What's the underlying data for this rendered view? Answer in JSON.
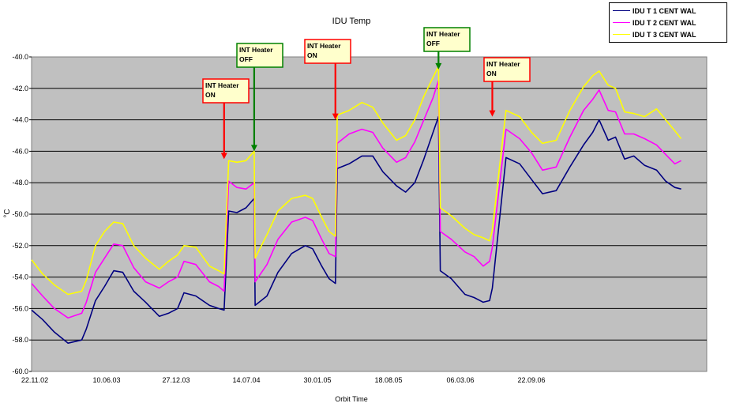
{
  "chart_data": {
    "type": "line",
    "title": "IDU Temp",
    "xlabel": "Orbit Time",
    "ylabel": "°C",
    "ylim": [
      -60,
      -40
    ],
    "yticks": [
      "-40.0",
      "-42.0",
      "-44.0",
      "-46.0",
      "-48.0",
      "-50.0",
      "-52.0",
      "-54.0",
      "-56.0",
      "-58.0",
      "-60.0"
    ],
    "xticks": [
      "22.11.02",
      "10.06.03",
      "27.12.03",
      "14.07.04",
      "30.01.05",
      "18.08.05",
      "06.03.06",
      "22.09.06"
    ],
    "grid": true,
    "plot_background": "#c0c0c0",
    "legend_position": "top-right",
    "series": [
      {
        "name": "IDU T 1 CENT WAL",
        "color": "#000080",
        "values": [
          [
            0,
            -56.1
          ],
          [
            12,
            -56.7
          ],
          [
            25,
            -57.5
          ],
          [
            40,
            -58.2
          ],
          [
            55,
            -58.0
          ],
          [
            60,
            -57.3
          ],
          [
            70,
            -55.5
          ],
          [
            80,
            -54.6
          ],
          [
            90,
            -53.6
          ],
          [
            100,
            -53.7
          ],
          [
            112,
            -54.9
          ],
          [
            125,
            -55.6
          ],
          [
            140,
            -56.5
          ],
          [
            150,
            -56.3
          ],
          [
            160,
            -56.0
          ],
          [
            167,
            -55.0
          ],
          [
            180,
            -55.2
          ],
          [
            195,
            -55.8
          ],
          [
            205,
            -56.0
          ],
          [
            211,
            -56.1
          ],
          [
            216,
            -49.8
          ],
          [
            225,
            -49.9
          ],
          [
            235,
            -49.6
          ],
          [
            244,
            -49.0
          ],
          [
            245,
            -55.8
          ],
          [
            258,
            -55.2
          ],
          [
            270,
            -53.7
          ],
          [
            285,
            -52.5
          ],
          [
            300,
            -52.0
          ],
          [
            308,
            -52.2
          ],
          [
            318,
            -53.3
          ],
          [
            326,
            -54.1
          ],
          [
            333,
            -54.4
          ],
          [
            335,
            -47.1
          ],
          [
            348,
            -46.8
          ],
          [
            362,
            -46.3
          ],
          [
            374,
            -46.3
          ],
          [
            385,
            -47.3
          ],
          [
            400,
            -48.2
          ],
          [
            410,
            -48.6
          ],
          [
            420,
            -48.0
          ],
          [
            430,
            -46.5
          ],
          [
            440,
            -44.8
          ],
          [
            446,
            -43.8
          ],
          [
            448,
            -53.6
          ],
          [
            460,
            -54.1
          ],
          [
            475,
            -55.1
          ],
          [
            485,
            -55.3
          ],
          [
            495,
            -55.6
          ],
          [
            502,
            -55.5
          ],
          [
            505,
            -54.7
          ],
          [
            520,
            -46.4
          ],
          [
            535,
            -46.8
          ],
          [
            548,
            -47.8
          ],
          [
            560,
            -48.7
          ],
          [
            575,
            -48.5
          ],
          [
            590,
            -47.0
          ],
          [
            605,
            -45.6
          ],
          [
            615,
            -44.8
          ],
          [
            622,
            -44.0
          ],
          [
            632,
            -45.3
          ],
          [
            640,
            -45.1
          ],
          [
            650,
            -46.5
          ],
          [
            660,
            -46.3
          ],
          [
            672,
            -46.9
          ],
          [
            685,
            -47.2
          ],
          [
            695,
            -47.9
          ],
          [
            705,
            -48.3
          ],
          [
            712,
            -48.4
          ]
        ]
      },
      {
        "name": "IDU T 2 CENT WAL",
        "color": "#ff00ff",
        "values": [
          [
            0,
            -54.4
          ],
          [
            12,
            -55.2
          ],
          [
            25,
            -56.0
          ],
          [
            40,
            -56.6
          ],
          [
            55,
            -56.3
          ],
          [
            60,
            -55.6
          ],
          [
            70,
            -53.7
          ],
          [
            80,
            -52.8
          ],
          [
            90,
            -51.9
          ],
          [
            100,
            -52.0
          ],
          [
            112,
            -53.4
          ],
          [
            125,
            -54.3
          ],
          [
            140,
            -54.7
          ],
          [
            150,
            -54.3
          ],
          [
            160,
            -54.0
          ],
          [
            167,
            -53.0
          ],
          [
            180,
            -53.2
          ],
          [
            195,
            -54.3
          ],
          [
            205,
            -54.6
          ],
          [
            211,
            -54.9
          ],
          [
            216,
            -47.9
          ],
          [
            225,
            -48.3
          ],
          [
            235,
            -48.4
          ],
          [
            244,
            -48.0
          ],
          [
            245,
            -54.3
          ],
          [
            258,
            -53.2
          ],
          [
            270,
            -51.6
          ],
          [
            285,
            -50.5
          ],
          [
            300,
            -50.2
          ],
          [
            308,
            -50.4
          ],
          [
            318,
            -51.6
          ],
          [
            326,
            -52.5
          ],
          [
            333,
            -52.7
          ],
          [
            335,
            -45.5
          ],
          [
            348,
            -44.9
          ],
          [
            362,
            -44.6
          ],
          [
            374,
            -44.8
          ],
          [
            385,
            -45.8
          ],
          [
            400,
            -46.7
          ],
          [
            410,
            -46.4
          ],
          [
            420,
            -45.4
          ],
          [
            430,
            -44.0
          ],
          [
            440,
            -42.6
          ],
          [
            446,
            -41.5
          ],
          [
            448,
            -51.1
          ],
          [
            460,
            -51.6
          ],
          [
            475,
            -52.4
          ],
          [
            485,
            -52.7
          ],
          [
            495,
            -53.3
          ],
          [
            502,
            -53.0
          ],
          [
            505,
            -52.1
          ],
          [
            520,
            -44.6
          ],
          [
            535,
            -45.2
          ],
          [
            548,
            -46.1
          ],
          [
            560,
            -47.2
          ],
          [
            575,
            -47.0
          ],
          [
            590,
            -45.1
          ],
          [
            605,
            -43.4
          ],
          [
            615,
            -42.7
          ],
          [
            622,
            -42.1
          ],
          [
            632,
            -43.4
          ],
          [
            640,
            -43.5
          ],
          [
            650,
            -44.9
          ],
          [
            660,
            -44.9
          ],
          [
            672,
            -45.2
          ],
          [
            685,
            -45.6
          ],
          [
            695,
            -46.2
          ],
          [
            705,
            -46.8
          ],
          [
            712,
            -46.6
          ]
        ]
      },
      {
        "name": "IDU T 3 CENT WAL",
        "color": "#ffff00",
        "values": [
          [
            0,
            -52.9
          ],
          [
            12,
            -53.8
          ],
          [
            25,
            -54.5
          ],
          [
            40,
            -55.1
          ],
          [
            55,
            -54.9
          ],
          [
            60,
            -54.2
          ],
          [
            70,
            -52.0
          ],
          [
            80,
            -51.1
          ],
          [
            90,
            -50.5
          ],
          [
            100,
            -50.6
          ],
          [
            112,
            -52.0
          ],
          [
            125,
            -52.8
          ],
          [
            140,
            -53.5
          ],
          [
            150,
            -53.0
          ],
          [
            160,
            -52.6
          ],
          [
            167,
            -52.0
          ],
          [
            180,
            -52.1
          ],
          [
            195,
            -53.3
          ],
          [
            205,
            -53.6
          ],
          [
            211,
            -53.8
          ],
          [
            216,
            -46.6
          ],
          [
            225,
            -46.7
          ],
          [
            235,
            -46.6
          ],
          [
            244,
            -46.0
          ],
          [
            245,
            -52.8
          ],
          [
            258,
            -51.3
          ],
          [
            270,
            -49.8
          ],
          [
            285,
            -49.0
          ],
          [
            300,
            -48.8
          ],
          [
            308,
            -49.0
          ],
          [
            318,
            -50.2
          ],
          [
            326,
            -51.1
          ],
          [
            333,
            -51.4
          ],
          [
            335,
            -43.7
          ],
          [
            348,
            -43.4
          ],
          [
            362,
            -42.9
          ],
          [
            374,
            -43.2
          ],
          [
            385,
            -44.2
          ],
          [
            400,
            -45.3
          ],
          [
            410,
            -45.0
          ],
          [
            420,
            -44.0
          ],
          [
            430,
            -42.5
          ],
          [
            440,
            -41.3
          ],
          [
            446,
            -40.6
          ],
          [
            448,
            -49.6
          ],
          [
            460,
            -50.1
          ],
          [
            475,
            -50.9
          ],
          [
            485,
            -51.3
          ],
          [
            495,
            -51.5
          ],
          [
            502,
            -51.7
          ],
          [
            505,
            -51.0
          ],
          [
            520,
            -43.4
          ],
          [
            535,
            -43.8
          ],
          [
            548,
            -44.8
          ],
          [
            560,
            -45.5
          ],
          [
            575,
            -45.3
          ],
          [
            590,
            -43.4
          ],
          [
            605,
            -41.9
          ],
          [
            615,
            -41.2
          ],
          [
            622,
            -40.9
          ],
          [
            632,
            -41.8
          ],
          [
            640,
            -42.0
          ],
          [
            650,
            -43.5
          ],
          [
            660,
            -43.6
          ],
          [
            672,
            -43.8
          ],
          [
            685,
            -43.3
          ],
          [
            695,
            -44.0
          ],
          [
            705,
            -44.7
          ],
          [
            712,
            -45.2
          ]
        ]
      }
    ],
    "annotations": [
      {
        "text": [
          "INT Heater",
          "ON"
        ],
        "color": "#ff0000",
        "x": 211,
        "y_target": -46.5
      },
      {
        "text": [
          "INT Heater",
          "OFF"
        ],
        "color": "#008000",
        "x": 244,
        "y_target": -46.0
      },
      {
        "text": [
          "INT Heater",
          "ON"
        ],
        "color": "#ff0000",
        "x": 333,
        "y_target": -44.0
      },
      {
        "text": [
          "INT Heater",
          "OFF"
        ],
        "color": "#008000",
        "x": 446,
        "y_target": -40.8
      },
      {
        "text": [
          "INT Heater",
          "ON"
        ],
        "color": "#ff0000",
        "x": 505,
        "y_target": -43.8
      }
    ]
  }
}
